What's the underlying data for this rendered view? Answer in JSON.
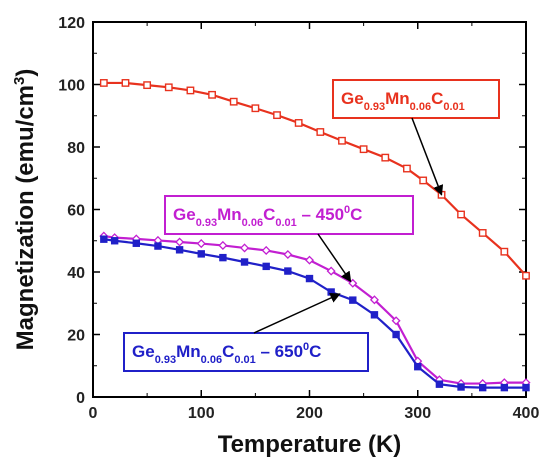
{
  "chart_data": {
    "type": "line",
    "xlabel": "Temperature (K)",
    "ylabel": "Magnetization (emu/cm",
    "ylabel_sup": "3",
    "ylabel_close": ")",
    "xlim": [
      0,
      400
    ],
    "ylim": [
      0,
      120
    ],
    "x_ticks": [
      0,
      100,
      200,
      300,
      400
    ],
    "y_ticks": [
      0,
      20,
      40,
      60,
      80,
      100,
      120
    ],
    "grid": false,
    "series": [
      {
        "key": "as_grown",
        "color": "#e8321e",
        "marker": "open-square",
        "x": [
          10,
          30,
          50,
          70,
          90,
          110,
          130,
          150,
          170,
          190,
          210,
          230,
          250,
          270,
          290,
          305,
          322,
          340,
          360,
          380,
          400
        ],
        "y": [
          100.5,
          100.5,
          99.8,
          99.1,
          98.1,
          96.7,
          94.5,
          92.4,
          90.2,
          87.7,
          84.8,
          82.0,
          79.3,
          76.6,
          73.1,
          69.3,
          64.7,
          58.4,
          52.5,
          46.5,
          38.8
        ]
      },
      {
        "key": "annealed_450",
        "color": "#c21fd1",
        "marker": "open-diamond",
        "x": [
          10,
          20,
          40,
          60,
          80,
          100,
          120,
          140,
          160,
          180,
          200,
          220,
          240,
          260,
          280,
          300,
          320,
          340,
          360,
          380,
          400
        ],
        "y": [
          51.5,
          51.0,
          50.6,
          50.1,
          49.6,
          49.1,
          48.5,
          47.7,
          46.9,
          45.6,
          43.8,
          40.3,
          36.4,
          31.1,
          24.4,
          11.5,
          5.5,
          4.3,
          4.3,
          4.6,
          4.6
        ]
      },
      {
        "key": "annealed_650",
        "color": "#2020c8",
        "marker": "filled-square",
        "x": [
          10,
          20,
          40,
          60,
          80,
          100,
          120,
          140,
          160,
          180,
          200,
          220,
          240,
          260,
          280,
          300,
          320,
          340,
          360,
          380,
          400
        ],
        "y": [
          50.5,
          50.0,
          49.2,
          48.3,
          47.1,
          45.8,
          44.6,
          43.2,
          41.8,
          40.3,
          37.9,
          33.6,
          31.0,
          26.3,
          20.0,
          9.7,
          4.1,
          3.2,
          3.0,
          3.0,
          3.0
        ]
      }
    ],
    "annotations": [
      {
        "series": "as_grown",
        "color": "#e8321e",
        "parts": [
          {
            "t": "Ge",
            "sub": false
          },
          {
            "t": "0.93",
            "sub": true
          },
          {
            "t": "Mn",
            "sub": false
          },
          {
            "t": "0.06",
            "sub": true
          },
          {
            "t": "C",
            "sub": false
          },
          {
            "t": "0.01",
            "sub": true
          }
        ],
        "arrow_to": [
          322,
          64.7
        ]
      },
      {
        "series": "annealed_450",
        "color": "#c21fd1",
        "parts": [
          {
            "t": "Ge",
            "sub": false
          },
          {
            "t": "0.93",
            "sub": true
          },
          {
            "t": "Mn",
            "sub": false
          },
          {
            "t": "0.06",
            "sub": true
          },
          {
            "t": "C",
            "sub": false
          },
          {
            "t": "0.01",
            "sub": true
          },
          {
            "t": " – 450",
            "sub": false
          },
          {
            "t": "0",
            "sup": true
          },
          {
            "t": "C",
            "sub": false
          }
        ],
        "arrow_to": [
          238,
          37.0
        ]
      },
      {
        "series": "annealed_650",
        "color": "#2020c8",
        "parts": [
          {
            "t": "Ge",
            "sub": false
          },
          {
            "t": "0.93",
            "sub": true
          },
          {
            "t": "Mn",
            "sub": false
          },
          {
            "t": "0.06",
            "sub": true
          },
          {
            "t": "C",
            "sub": false
          },
          {
            "t": "0.01",
            "sub": true
          },
          {
            "t": " – 650",
            "sub": false
          },
          {
            "t": "0",
            "sup": true
          },
          {
            "t": "C",
            "sub": false
          }
        ],
        "arrow_to": [
          228,
          33.0
        ]
      }
    ]
  }
}
